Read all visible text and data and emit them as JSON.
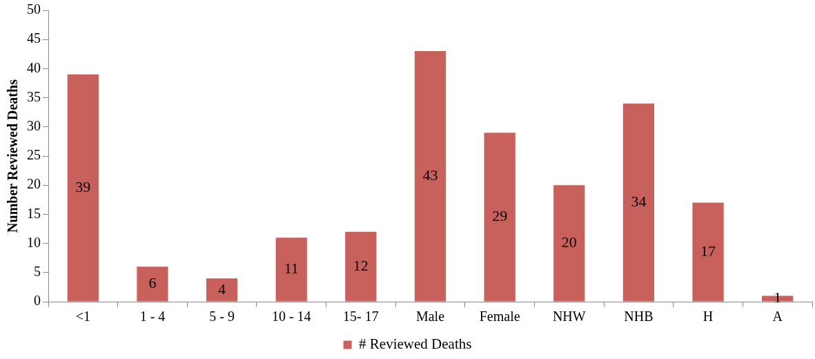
{
  "chart_data": {
    "type": "bar",
    "ylabel": "Number Reviewed Deaths",
    "categories": [
      "<1",
      "1 - 4",
      "5 - 9",
      "10 - 14",
      "15- 17",
      "Male",
      "Female",
      "NHW",
      "NHB",
      "H",
      "A"
    ],
    "series": [
      {
        "name": "# Reviewed Deaths",
        "color": "#c8605b",
        "values": [
          39,
          6,
          4,
          11,
          12,
          43,
          29,
          20,
          34,
          17,
          1
        ]
      }
    ],
    "ylim": [
      0,
      50
    ],
    "yticks": [
      0,
      5,
      10,
      15,
      20,
      25,
      30,
      35,
      40,
      45,
      50
    ],
    "data_labels": true,
    "legend": "bottom"
  }
}
